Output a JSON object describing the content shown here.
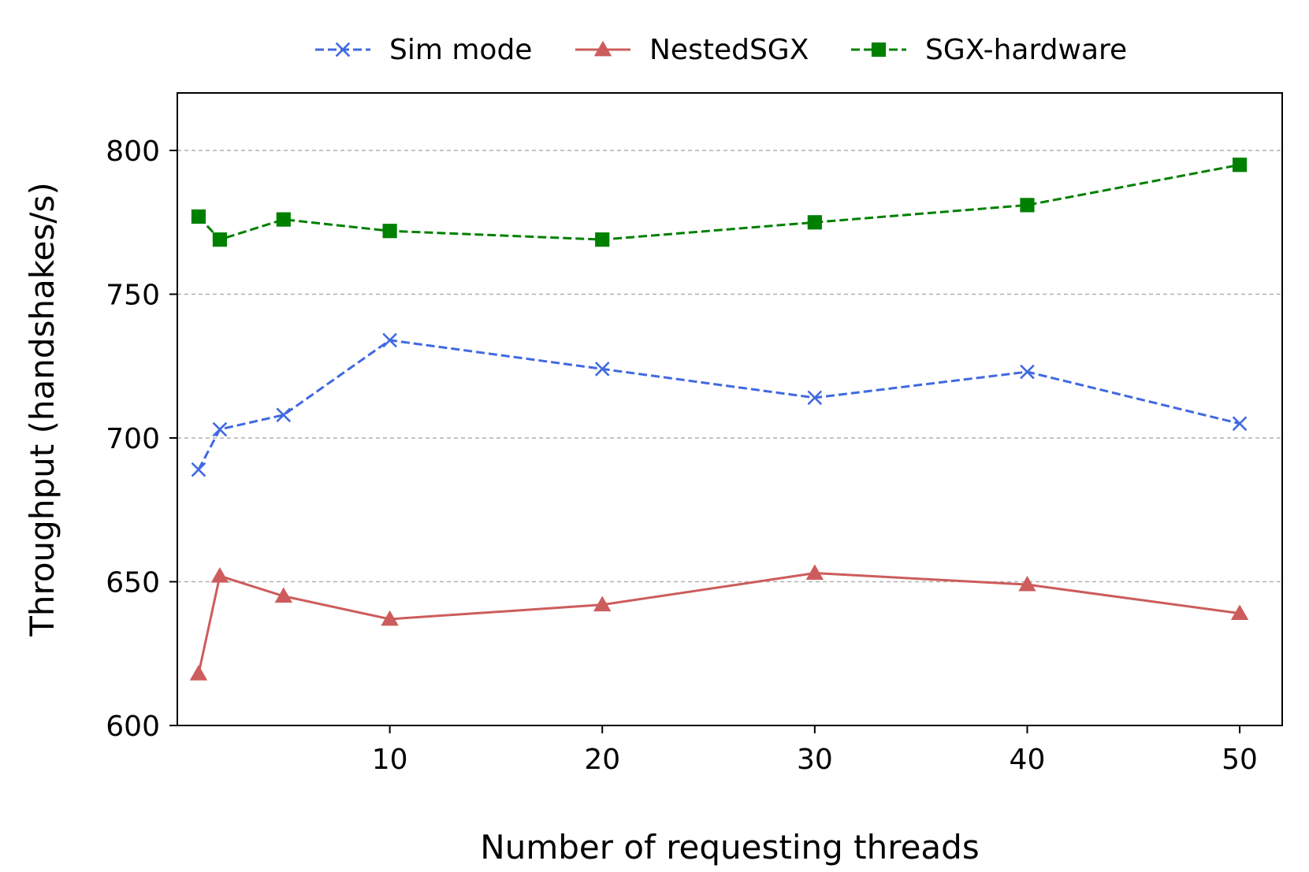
{
  "chart_data": {
    "type": "line",
    "title": "",
    "xlabel": "Number of requesting threads",
    "ylabel": "Throughput (handshakes/s)",
    "xlim": [
      0,
      52
    ],
    "ylim": [
      600,
      820
    ],
    "xticks": [
      10,
      20,
      30,
      40,
      50
    ],
    "yticks": [
      600,
      650,
      700,
      750,
      800
    ],
    "grid": {
      "axis": "y",
      "style": "dashed"
    },
    "legend_position": "top-center, outside plot",
    "x": [
      1,
      2,
      5,
      10,
      20,
      30,
      40,
      50
    ],
    "series": [
      {
        "name": "Sim mode",
        "color": "#4169E1",
        "line_style": "dashed",
        "marker": "x",
        "values": [
          689,
          703,
          708,
          734,
          724,
          714,
          723,
          705
        ]
      },
      {
        "name": "NestedSGX",
        "color": "#CD5C5C",
        "line_style": "solid",
        "marker": "triangle",
        "values": [
          618,
          652,
          645,
          637,
          642,
          653,
          649,
          639
        ]
      },
      {
        "name": "SGX-hardware",
        "color": "#008000",
        "line_style": "dashed",
        "marker": "square",
        "values": [
          777,
          769,
          776,
          772,
          769,
          775,
          781,
          795
        ]
      }
    ]
  }
}
